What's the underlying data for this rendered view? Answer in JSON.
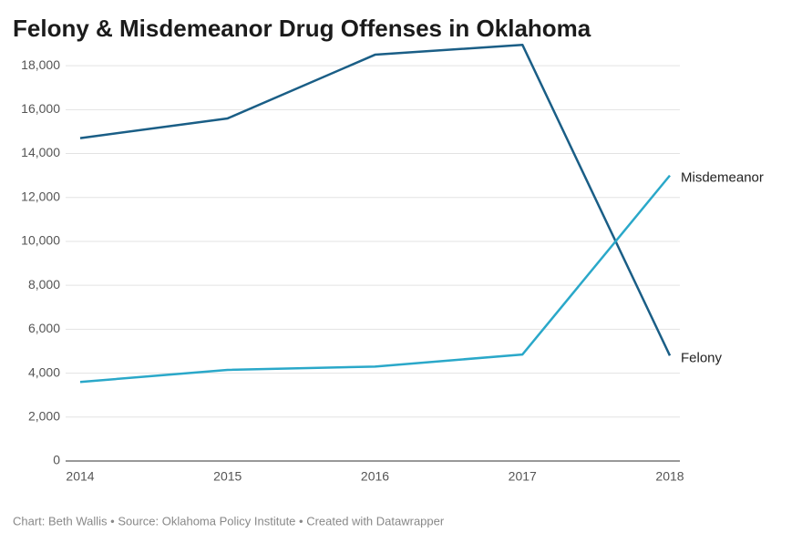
{
  "chart_data": {
    "type": "line",
    "title": "Felony & Misdemeanor Drug Offenses in Oklahoma",
    "x": [
      2014,
      2015,
      2016,
      2017,
      2018
    ],
    "xlim": [
      2014,
      2018
    ],
    "xticks": [
      2014,
      2015,
      2016,
      2017,
      2018
    ],
    "series": [
      {
        "name": "Felony",
        "color": "#1a5e86",
        "values": [
          14700,
          15600,
          18500,
          18950,
          4800
        ]
      },
      {
        "name": "Misdemeanor",
        "color": "#2aa8c9",
        "values": [
          3600,
          4150,
          4300,
          4850,
          13000
        ]
      }
    ],
    "ylim": [
      0,
      19000
    ],
    "yticks": [
      0,
      {
        "value": 2000,
        "label": "2,000"
      },
      {
        "value": 4000,
        "label": "4,000"
      },
      {
        "value": 6000,
        "label": "6,000"
      },
      {
        "value": 8000,
        "label": "8,000"
      },
      {
        "value": 10000,
        "label": "10,000"
      },
      {
        "value": 12000,
        "label": "12,000"
      },
      {
        "value": 14000,
        "label": "14,000"
      },
      {
        "value": 16000,
        "label": "16,000"
      },
      {
        "value": 18000,
        "label": "18,000"
      }
    ],
    "grid": true,
    "source": "Chart: Beth Wallis • Source: Oklahoma Policy Institute • Created with Datawrapper"
  }
}
